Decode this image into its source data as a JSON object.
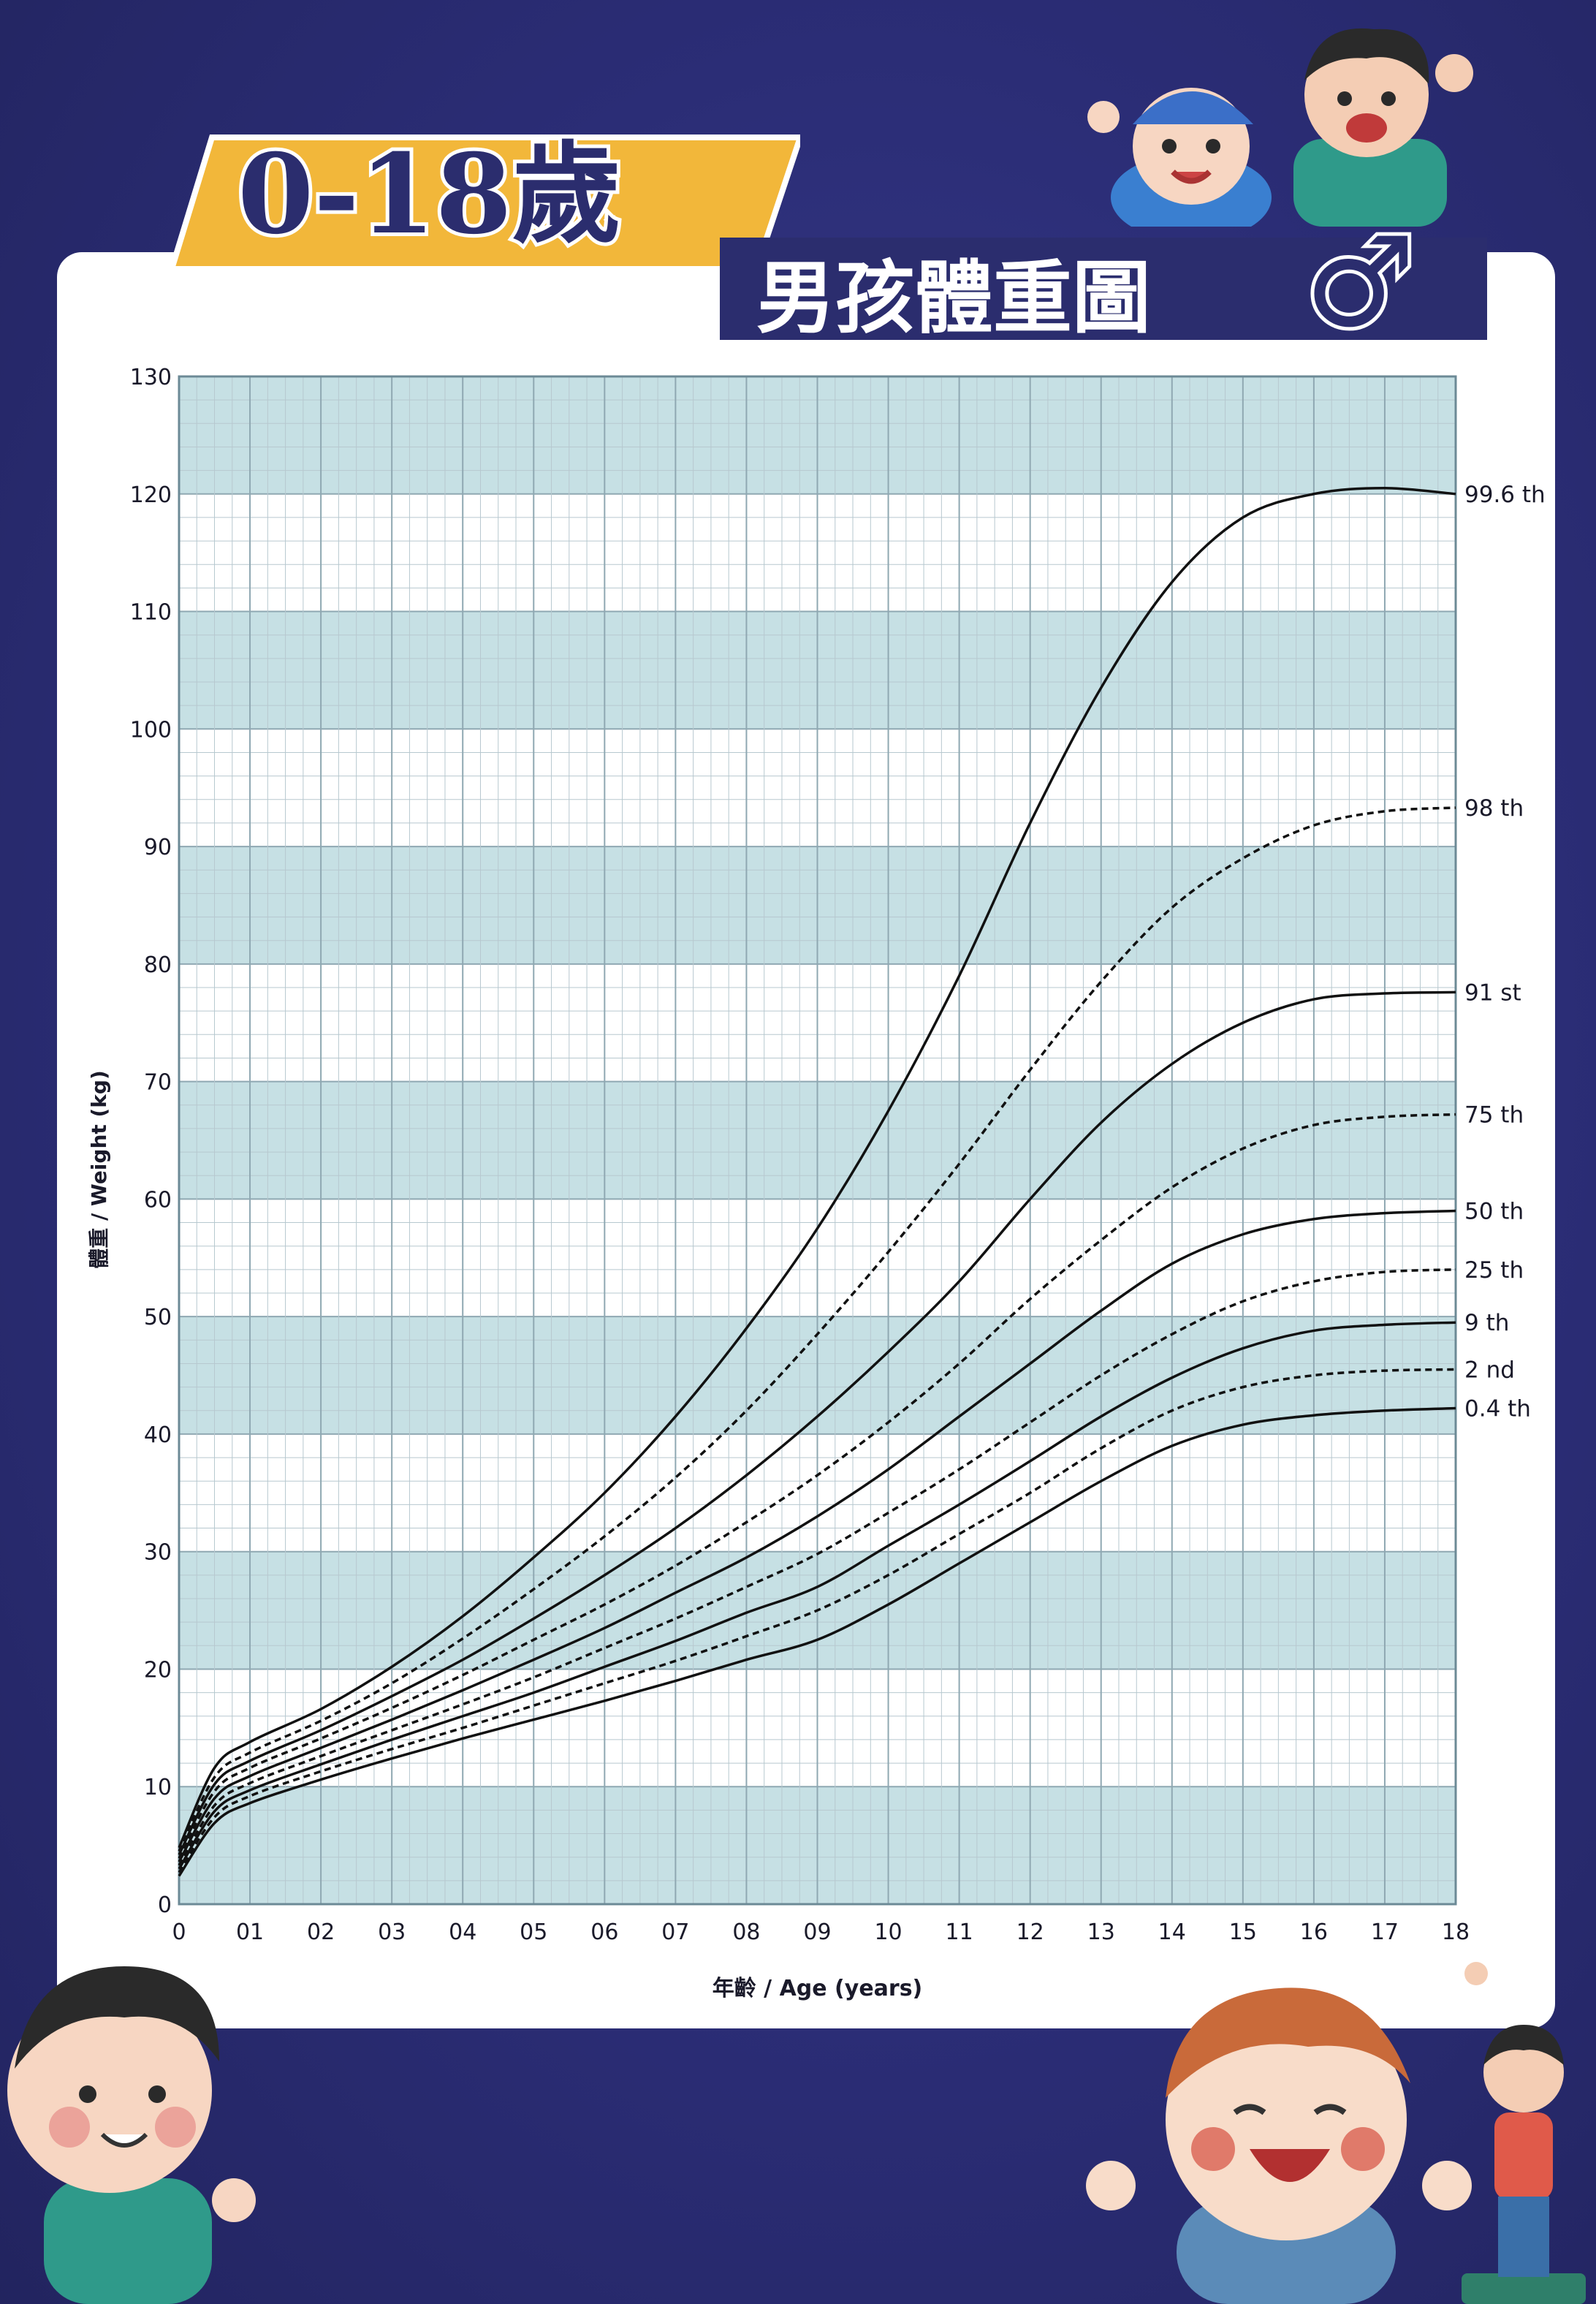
{
  "title": {
    "main": "0-18歲",
    "sub": "男孩體重圖",
    "gender_symbol": "♂"
  },
  "colors": {
    "background": "#2b2d76",
    "panel": "#ffffff",
    "band_fill": "#c6e0e4",
    "grid_line": "#b7c8cf",
    "curve": "#111111",
    "title_gold": "#f2b73a",
    "title_text": "#2b2d6e"
  },
  "chart_data": {
    "type": "line",
    "title": "0-18歲 男孩體重圖",
    "xlabel": "年齡 / Age (years)",
    "ylabel": "體重 / Weight (kg)",
    "xlim": [
      0,
      18
    ],
    "ylim": [
      0,
      130
    ],
    "x_ticks": [
      "0",
      "01",
      "02",
      "03",
      "04",
      "05",
      "06",
      "07",
      "08",
      "09",
      "10",
      "11",
      "12",
      "13",
      "14",
      "15",
      "16",
      "17",
      "18"
    ],
    "y_ticks": [
      "0",
      "10",
      "20",
      "30",
      "40",
      "50",
      "60",
      "70",
      "80",
      "90",
      "100",
      "110",
      "120",
      "130"
    ],
    "grid": true,
    "shaded_bands": [
      [
        0,
        10
      ],
      [
        20,
        30
      ],
      [
        40,
        50
      ],
      [
        60,
        70
      ],
      [
        80,
        90
      ],
      [
        100,
        110
      ],
      [
        120,
        130
      ]
    ],
    "x": [
      0,
      0.5,
      1,
      2,
      3,
      4,
      5,
      6,
      7,
      8,
      9,
      10,
      11,
      12,
      13,
      14,
      15,
      16,
      17,
      18
    ],
    "series": [
      {
        "name": "99.6 th",
        "style": "solid",
        "values": [
          4.8,
          11.6,
          13.8,
          16.6,
          20.2,
          24.5,
          29.5,
          35.0,
          41.5,
          49.0,
          57.5,
          67.5,
          79.0,
          92.0,
          103.5,
          112.5,
          118.0,
          120.0,
          120.5,
          120.0
        ]
      },
      {
        "name": "98 th",
        "style": "dashed",
        "values": [
          4.5,
          10.8,
          12.9,
          15.6,
          18.8,
          22.6,
          26.8,
          31.3,
          36.3,
          42.0,
          48.5,
          55.5,
          63.0,
          71.0,
          78.5,
          84.8,
          89.0,
          91.8,
          93.0,
          93.3
        ]
      },
      {
        "name": "91 st",
        "style": "solid",
        "values": [
          4.2,
          10.2,
          12.2,
          14.8,
          17.7,
          20.8,
          24.3,
          28.0,
          32.0,
          36.5,
          41.5,
          47.0,
          53.0,
          60.0,
          66.5,
          71.5,
          75.0,
          77.0,
          77.5,
          77.6
        ]
      },
      {
        "name": "75 th",
        "style": "dashed",
        "values": [
          3.9,
          9.6,
          11.6,
          14.1,
          16.7,
          19.5,
          22.5,
          25.5,
          28.8,
          32.5,
          36.5,
          41.0,
          46.0,
          51.5,
          56.5,
          61.0,
          64.3,
          66.3,
          67.0,
          67.2
        ]
      },
      {
        "name": "50 th",
        "style": "solid",
        "values": [
          3.6,
          9.0,
          10.9,
          13.3,
          15.7,
          18.2,
          20.8,
          23.5,
          26.5,
          29.5,
          33.0,
          37.0,
          41.5,
          46.0,
          50.5,
          54.5,
          57.0,
          58.3,
          58.8,
          59.0
        ]
      },
      {
        "name": "25 th",
        "style": "dashed",
        "values": [
          3.3,
          8.4,
          10.3,
          12.6,
          14.8,
          17.0,
          19.3,
          21.8,
          24.3,
          27.0,
          29.8,
          33.3,
          37.0,
          41.0,
          45.0,
          48.5,
          51.3,
          53.0,
          53.8,
          54.0
        ]
      },
      {
        "name": "9 th",
        "style": "solid",
        "values": [
          3.0,
          7.9,
          9.7,
          11.9,
          14.0,
          16.0,
          18.0,
          20.2,
          22.4,
          24.8,
          27.0,
          30.5,
          34.0,
          37.7,
          41.5,
          44.8,
          47.3,
          48.8,
          49.3,
          49.5
        ]
      },
      {
        "name": "2 nd",
        "style": "dashed",
        "values": [
          2.7,
          7.4,
          9.2,
          11.3,
          13.2,
          15.0,
          16.9,
          18.8,
          20.7,
          22.8,
          25.0,
          28.0,
          31.5,
          35.0,
          38.8,
          42.0,
          44.0,
          45.0,
          45.4,
          45.5
        ]
      },
      {
        "name": "0.4 th",
        "style": "solid",
        "values": [
          2.4,
          6.9,
          8.6,
          10.6,
          12.4,
          14.1,
          15.7,
          17.3,
          19.0,
          20.8,
          22.5,
          25.5,
          29.0,
          32.5,
          36.0,
          39.0,
          40.8,
          41.6,
          42.0,
          42.2
        ]
      }
    ]
  }
}
